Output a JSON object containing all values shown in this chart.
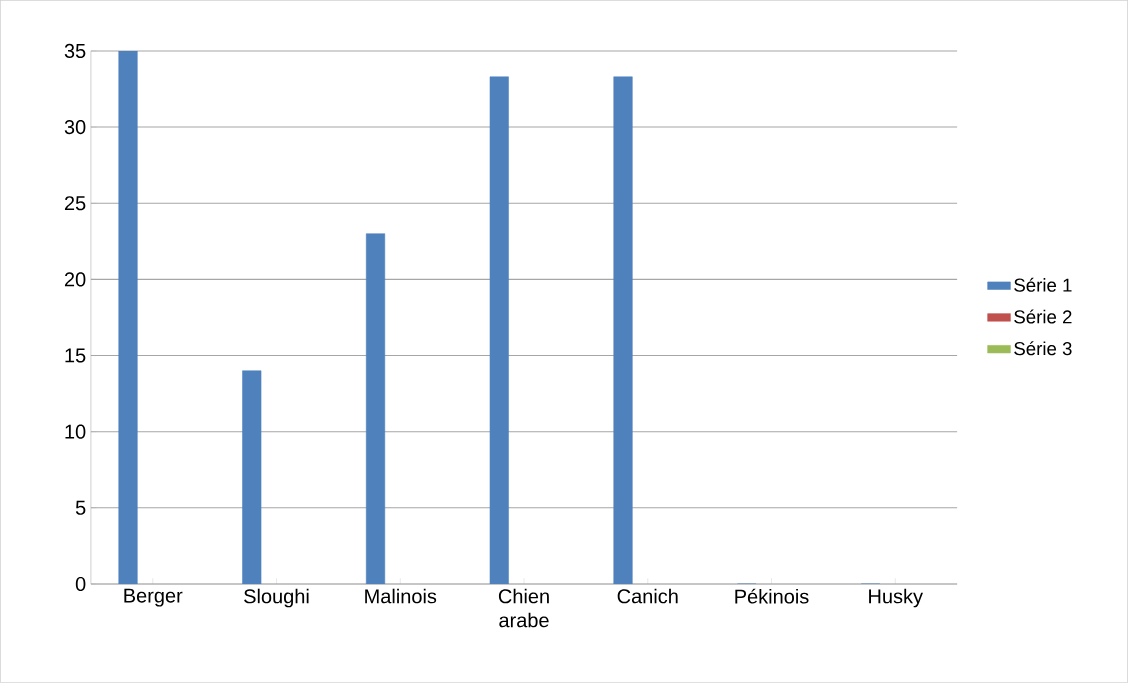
{
  "chart_data": {
    "type": "bar",
    "categories": [
      "Berger",
      "Sloughi",
      "Malinois",
      "Chien arabe",
      "Canich",
      "Pékinois",
      "Husky"
    ],
    "series": [
      {
        "name": "Série 1",
        "color": "#4f81bd",
        "values": [
          35,
          14,
          23,
          33.3,
          33.3,
          0,
          0
        ]
      },
      {
        "name": "Série 2",
        "color": "#c0504d",
        "values": [
          null,
          null,
          null,
          null,
          null,
          null,
          null
        ]
      },
      {
        "name": "Série 3",
        "color": "#9bbb59",
        "values": [
          null,
          null,
          null,
          null,
          null,
          null,
          null
        ]
      }
    ],
    "ylim": [
      0,
      35
    ],
    "yticks": [
      0,
      5,
      10,
      15,
      20,
      25,
      30,
      35
    ],
    "grid": "y",
    "legend": "right"
  }
}
